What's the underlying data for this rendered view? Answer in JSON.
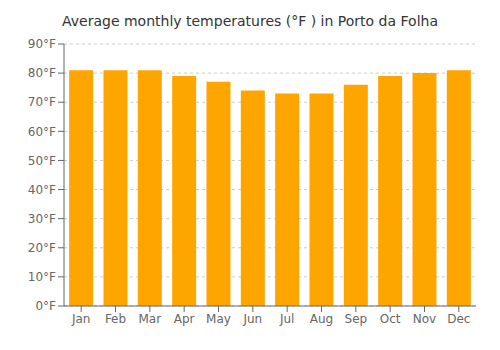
{
  "chart_data": {
    "type": "bar",
    "title": "Average monthly temperatures (°F ) in Porto da Folha",
    "categories": [
      "Jan",
      "Feb",
      "Mar",
      "Apr",
      "May",
      "Jun",
      "Jul",
      "Aug",
      "Sep",
      "Oct",
      "Nov",
      "Dec"
    ],
    "values": [
      81,
      81,
      81,
      79,
      77,
      74,
      73,
      73,
      76,
      79,
      80,
      81
    ],
    "color": "#FFA500",
    "ylim": [
      0,
      90
    ],
    "yticks": [
      {
        "value": 0,
        "label": "0°F"
      },
      {
        "value": 10,
        "label": "10°F"
      },
      {
        "value": 20,
        "label": "20°F"
      },
      {
        "value": 30,
        "label": "30°F"
      },
      {
        "value": 40,
        "label": "40°F"
      },
      {
        "value": 50,
        "label": "50°F"
      },
      {
        "value": 60,
        "label": "60°F"
      },
      {
        "value": 70,
        "label": "70°F"
      },
      {
        "value": 80,
        "label": "80°F"
      },
      {
        "value": 90,
        "label": "90°F"
      }
    ],
    "grid": true
  }
}
